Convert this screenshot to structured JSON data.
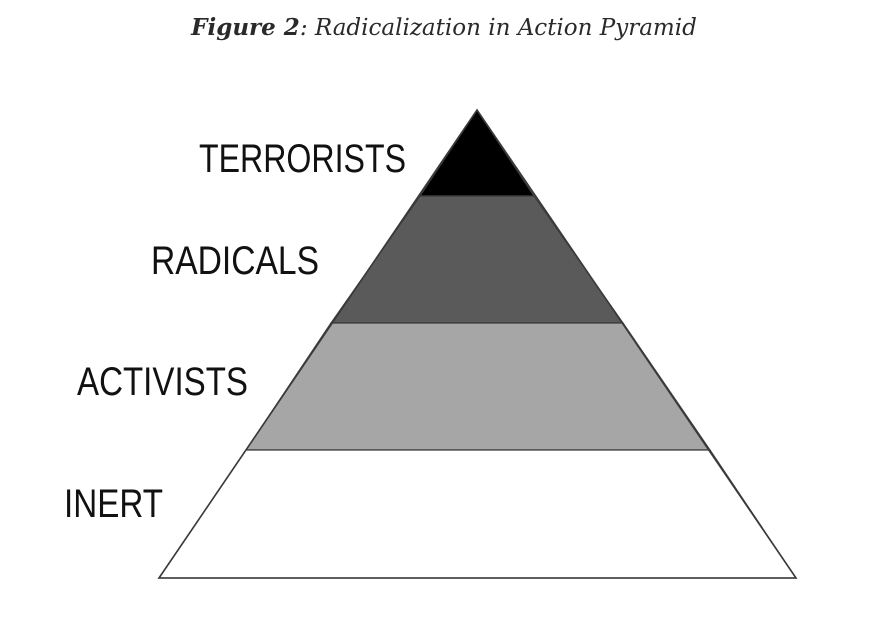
{
  "figure": {
    "label": "Figure 2",
    "separator": ":",
    "title": "Radicalization in Action Pyramid"
  },
  "pyramid": {
    "tiers": [
      {
        "name": "TERRORISTS",
        "color": "#000000"
      },
      {
        "name": "RADICALS",
        "color": "#5a5a5a"
      },
      {
        "name": "ACTIVISTS",
        "color": "#a6a6a6"
      },
      {
        "name": "INERT",
        "color": "#ffffff"
      }
    ],
    "outline_color": "#3a3a3a"
  }
}
